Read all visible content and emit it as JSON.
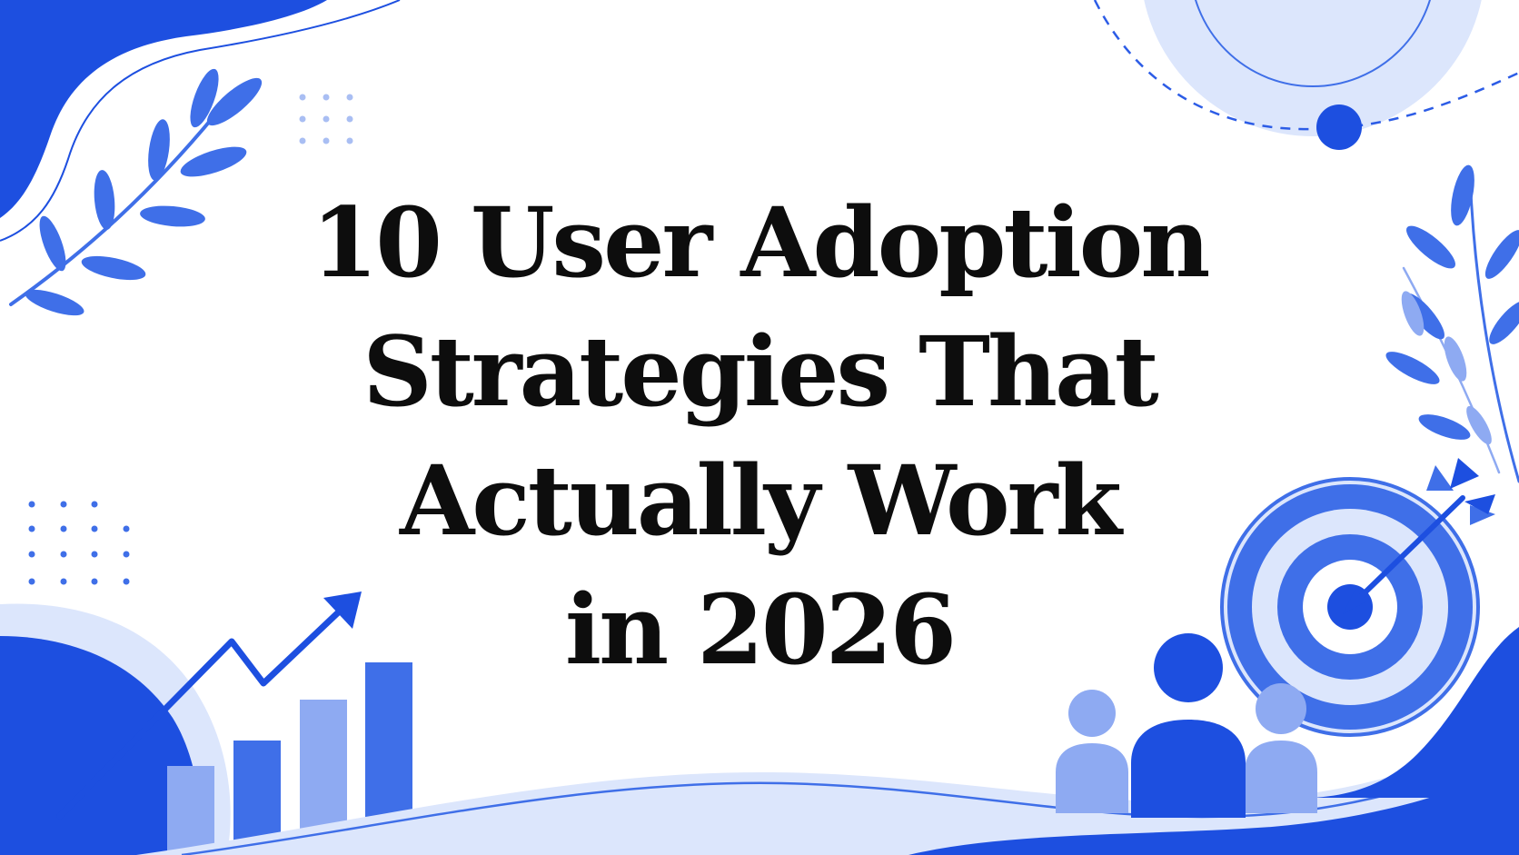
{
  "title_lines": [
    "10 User Adoption",
    "Strategies That",
    "Actually Work",
    "in 2026"
  ],
  "colors": {
    "primary": "#1d4fe0",
    "medium": "#3f6fe8",
    "light": "#8eaaf2",
    "pale": "#dce6fc",
    "text": "#0d0d0d",
    "background": "#ffffff"
  },
  "decorations": [
    "leaf-branch-icon",
    "growth-arrow-icon",
    "bar-chart-icon",
    "target-icon",
    "arrow-icon",
    "users-group-icon"
  ]
}
